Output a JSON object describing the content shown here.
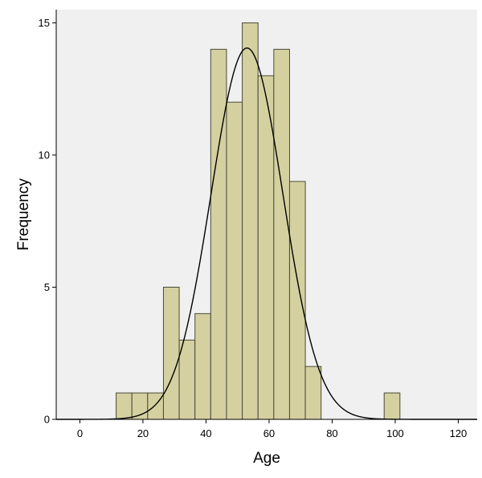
{
  "chart_data": {
    "type": "bar",
    "subtype": "histogram-with-normal-curve",
    "xlabel": "Age",
    "ylabel": "Frequency",
    "xlim": [
      -7.5,
      126
    ],
    "ylim": [
      0,
      15.5
    ],
    "x_ticks": [
      0,
      20,
      40,
      60,
      80,
      100,
      120
    ],
    "y_ticks": [
      0,
      5,
      10,
      15
    ],
    "bin_width": 5,
    "bins": [
      {
        "start": 11.5,
        "end": 16.5,
        "count": 1
      },
      {
        "start": 16.5,
        "end": 21.5,
        "count": 1
      },
      {
        "start": 21.5,
        "end": 26.5,
        "count": 1
      },
      {
        "start": 26.5,
        "end": 31.5,
        "count": 5
      },
      {
        "start": 31.5,
        "end": 36.5,
        "count": 3
      },
      {
        "start": 36.5,
        "end": 41.5,
        "count": 4
      },
      {
        "start": 41.5,
        "end": 46.5,
        "count": 14
      },
      {
        "start": 46.5,
        "end": 51.5,
        "count": 12
      },
      {
        "start": 51.5,
        "end": 56.5,
        "count": 15
      },
      {
        "start": 56.5,
        "end": 61.5,
        "count": 13
      },
      {
        "start": 61.5,
        "end": 66.5,
        "count": 14
      },
      {
        "start": 66.5,
        "end": 71.5,
        "count": 9
      },
      {
        "start": 71.5,
        "end": 76.5,
        "count": 2
      },
      {
        "start": 96.5,
        "end": 101.5,
        "count": 1
      }
    ],
    "normal_curve": {
      "mean": 53,
      "std": 11.4,
      "peak": 14.05
    },
    "grid": false,
    "colors": {
      "plot_background": "#f0f0f0",
      "bar_fill": "#d4d0a0",
      "bar_stroke": "#4a4a3a",
      "curve": "#000000"
    }
  }
}
